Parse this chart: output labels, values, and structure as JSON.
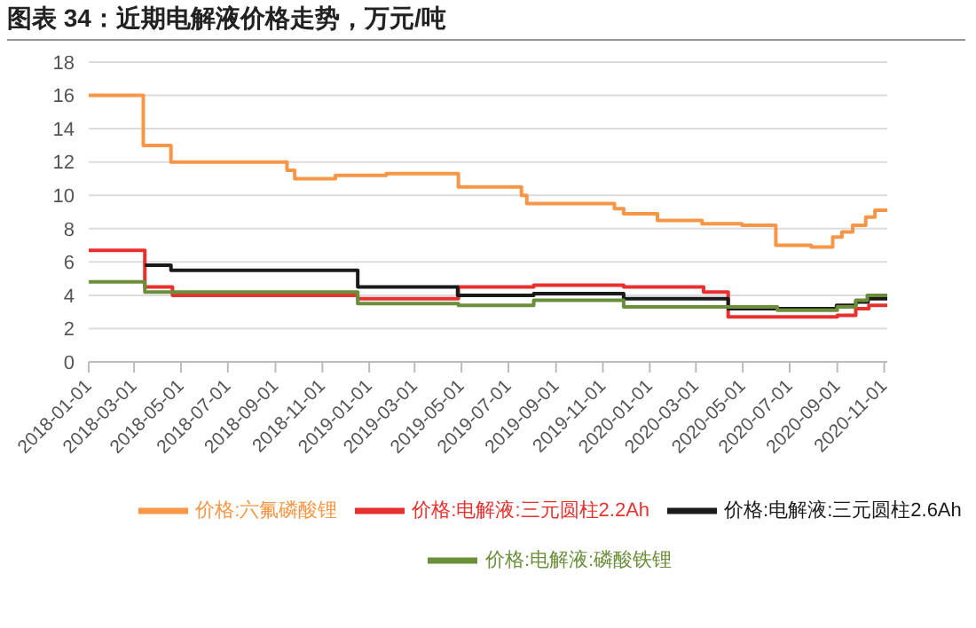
{
  "chart_data": {
    "type": "step",
    "title": "图表 34：近期电解液价格走势，万元/吨",
    "xlim": [
      "2018-01-01",
      "2020-11-05"
    ],
    "xticks": [
      "2018-01-01",
      "2018-03-01",
      "2018-05-01",
      "2018-07-01",
      "2018-09-01",
      "2018-11-01",
      "2019-01-01",
      "2019-03-01",
      "2019-05-01",
      "2019-07-01",
      "2019-09-01",
      "2019-11-01",
      "2020-01-01",
      "2020-03-01",
      "2020-05-01",
      "2020-07-01",
      "2020-09-01",
      "2020-11-01"
    ],
    "ylim": [
      0,
      18
    ],
    "yticks": [
      0,
      2,
      4,
      6,
      8,
      10,
      12,
      14,
      16,
      18
    ],
    "grid": "y",
    "legend": "bottom",
    "line_style": "solid",
    "marker": "none",
    "series": [
      {
        "name": "价格:电解液:三元圆柱2.2Ah",
        "color": "#e8312f",
        "x": [
          "2018-01-01",
          "2018-03-15",
          "2018-04-20",
          "2018-12-17",
          "2019-04-27",
          "2019-08-03",
          "2019-11-28",
          "2020-03-11",
          "2020-04-12",
          "2020-09-01",
          "2020-09-25",
          "2020-10-12",
          "2020-11-05"
        ],
        "values": [
          6.7,
          4.5,
          4.0,
          3.8,
          4.5,
          4.6,
          4.5,
          4.2,
          2.7,
          2.8,
          3.2,
          3.4,
          3.4
        ]
      },
      {
        "name": "价格:电解液:三元圆柱2.6Ah",
        "color": "#1a1a1a",
        "x": [
          "2018-03-15",
          "2018-04-18",
          "2018-12-17",
          "2019-04-26",
          "2019-08-03",
          "2019-11-28",
          "2020-04-12",
          "2020-08-31",
          "2020-09-25",
          "2020-10-11",
          "2020-11-05"
        ],
        "values": [
          5.8,
          5.5,
          4.5,
          4.0,
          4.1,
          3.8,
          3.2,
          3.4,
          3.6,
          3.8,
          3.8
        ]
      },
      {
        "name": "价格:电解液:磷酸铁锂",
        "color": "#6b8e3a",
        "x": [
          "2018-01-01",
          "2018-03-15",
          "2018-12-17",
          "2019-04-27",
          "2019-08-03",
          "2019-11-28",
          "2020-06-15",
          "2020-09-01",
          "2020-09-25",
          "2020-10-10",
          "2020-11-05"
        ],
        "values": [
          4.8,
          4.2,
          3.5,
          3.4,
          3.7,
          3.3,
          3.1,
          3.3,
          3.7,
          4.0,
          4.0
        ]
      },
      {
        "name": "价格:六氟磷酸锂",
        "color": "#f79646",
        "x": [
          "2018-01-01",
          "2018-03-13",
          "2018-04-18",
          "2018-09-16",
          "2018-09-26",
          "2018-11-18",
          "2019-01-23",
          "2019-04-27",
          "2019-07-18",
          "2019-07-25",
          "2019-11-16",
          "2019-11-28",
          "2020-01-11",
          "2020-03-09",
          "2020-04-30",
          "2020-06-13",
          "2020-07-29",
          "2020-08-26",
          "2020-09-07",
          "2020-09-21",
          "2020-10-08",
          "2020-10-20",
          "2020-11-05"
        ],
        "values": [
          16,
          13,
          12,
          11.5,
          11,
          11.2,
          11.3,
          10.5,
          10.0,
          9.5,
          9.2,
          8.9,
          8.5,
          8.3,
          8.2,
          7.0,
          6.9,
          7.5,
          7.8,
          8.2,
          8.7,
          9.1,
          9.1
        ]
      }
    ]
  }
}
